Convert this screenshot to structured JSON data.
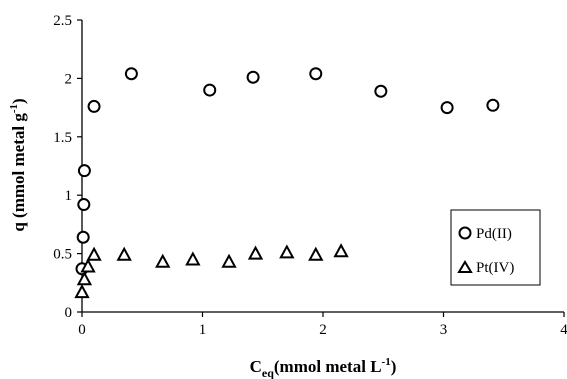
{
  "chart_data": {
    "type": "scatter",
    "title": "",
    "xlabel": {
      "main": "C",
      "sub": "eq",
      "rest": "(mmol metal L",
      "sup": "-1",
      "end": ")"
    },
    "ylabel": {
      "main": "q (mmol metal g",
      "sup": "-1",
      "end": ")"
    },
    "xlim": [
      0,
      4
    ],
    "ylim": [
      0,
      2.5
    ],
    "xticks": [
      0,
      1,
      2,
      3,
      4
    ],
    "yticks": [
      0,
      0.5,
      1,
      1.5,
      2,
      2.5
    ],
    "xtick_labels": [
      "0",
      "1",
      "2",
      "3",
      "4"
    ],
    "ytick_labels": [
      "0",
      "0.5",
      "1",
      "1.5",
      "2",
      "2.5"
    ],
    "grid": false,
    "legend_position": "right",
    "series": [
      {
        "name": "Pd(II)",
        "marker": "circle",
        "x": [
          0.0,
          0.01,
          0.015,
          0.02,
          0.1,
          0.41,
          1.06,
          1.42,
          1.94,
          2.48,
          3.03,
          3.41
        ],
        "y": [
          0.37,
          0.64,
          0.92,
          1.21,
          1.76,
          2.04,
          1.9,
          2.01,
          2.04,
          1.89,
          1.75,
          1.77
        ]
      },
      {
        "name": "Pt(IV)",
        "marker": "triangle",
        "x": [
          0.0,
          0.02,
          0.05,
          0.1,
          0.35,
          0.67,
          0.92,
          1.22,
          1.44,
          1.7,
          1.94,
          2.15
        ],
        "y": [
          0.17,
          0.28,
          0.39,
          0.49,
          0.49,
          0.43,
          0.45,
          0.43,
          0.5,
          0.51,
          0.49,
          0.52
        ]
      }
    ]
  }
}
